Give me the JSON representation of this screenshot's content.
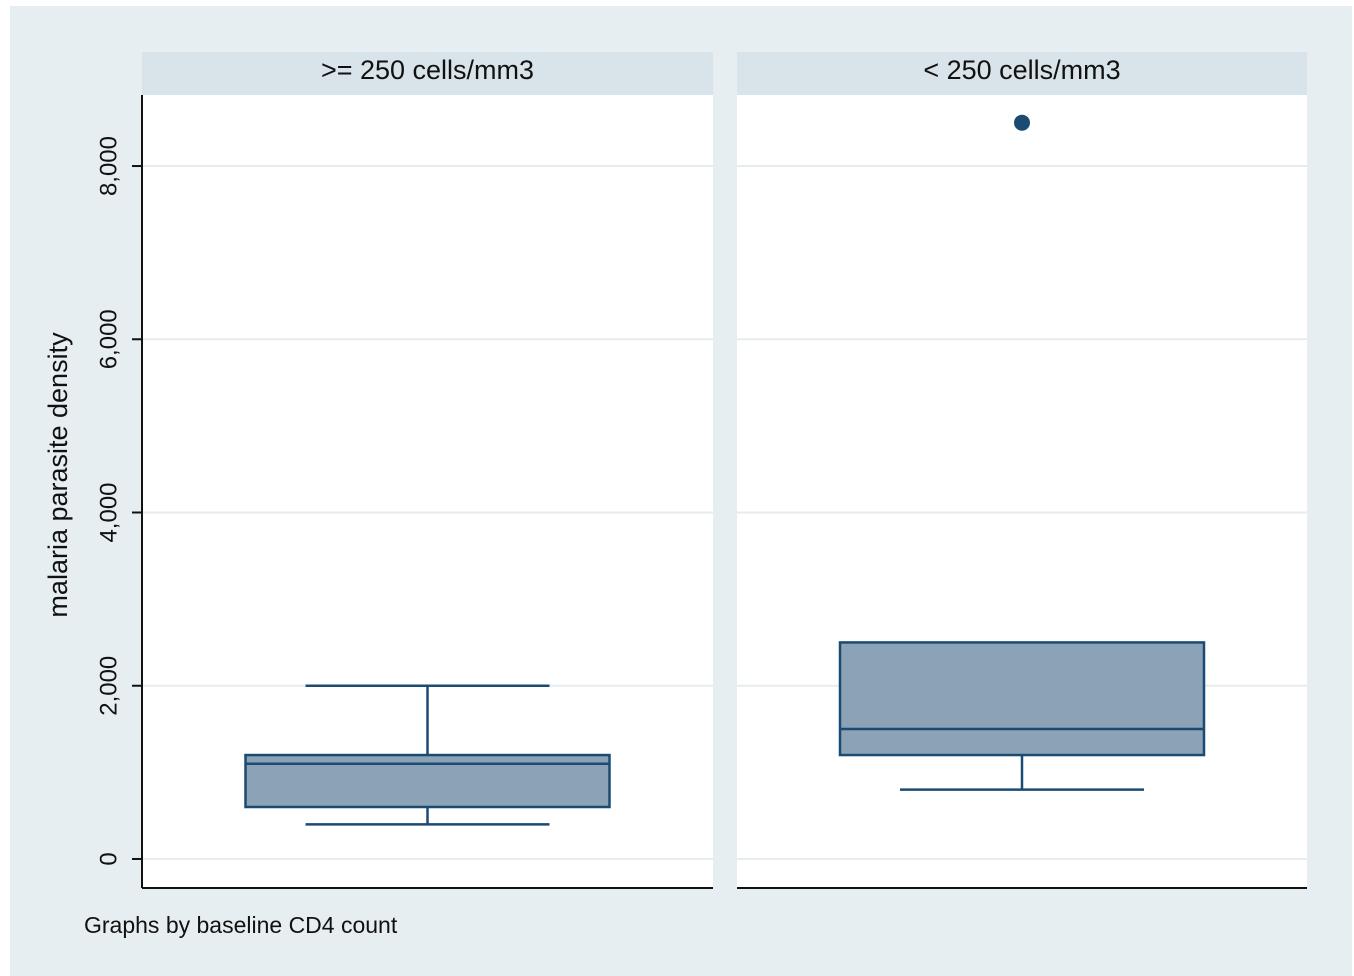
{
  "chart_data": {
    "type": "box",
    "ylabel": "malaria parasite density",
    "note": "Graphs by baseline CD4 count",
    "categories": [
      ">= 250 cells/mm3",
      "< 250 cells/mm3"
    ],
    "boxes": [
      {
        "whislo": 400,
        "q1": 600,
        "median": 1100,
        "q3": 1200,
        "whishi": 2000
      },
      {
        "whislo": 800,
        "q1": 1200,
        "median": 1500,
        "q3": 2500,
        "whishi": 2500,
        "fliers": [
          8500
        ]
      }
    ],
    "color": "#8ca2b6",
    "line_color": "#1b4a73",
    "ylim": [
      -335,
      8820
    ],
    "yticks": [
      0,
      {
        "value": 2000,
        "label": "2,000"
      },
      {
        "value": 4000,
        "label": "4,000"
      },
      {
        "value": 6000,
        "label": "6,000"
      },
      {
        "value": 8000,
        "label": "8,000"
      }
    ],
    "grid": true
  }
}
